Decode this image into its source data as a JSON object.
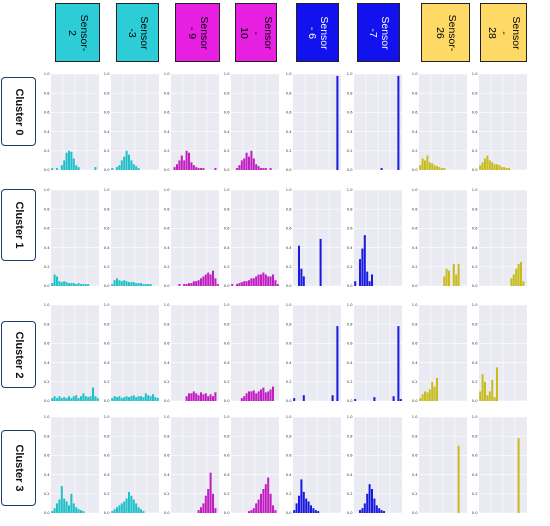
{
  "sensors": [
    {
      "label": "Sensor-2",
      "color": "#2ccdd6"
    },
    {
      "label": "Sensor -3",
      "color": "#2ccdd6"
    },
    {
      "label": "Sensor - 9",
      "color": "#e61fe0"
    },
    {
      "label": "Sensor -\n10",
      "color": "#e61fe0"
    },
    {
      "label": "Sensor - 6",
      "color": "#1212ee"
    },
    {
      "label": "Sensor -7",
      "color": "#1212ee"
    },
    {
      "label": "Sensor-26",
      "color": "#ffd966"
    },
    {
      "label": "Sensor -\n28",
      "color": "#ffd966"
    }
  ],
  "clusters": [
    "Cluster 0",
    "Cluster 1",
    "Cluster 2",
    "Cluster 3"
  ],
  "colors": {
    "cyan_bar": "#20c0c8",
    "magenta_bar": "#c01ec0",
    "blue_bar": "#1a1ae0",
    "yellow_bar": "#c8bc1c",
    "panel_bg": "#eaeaf2",
    "grid": "#ffffff"
  },
  "chart_data": {
    "type": "bar",
    "layout": "grid of histograms, rows = clusters, columns = sensors",
    "ylim": [
      0,
      1.0
    ],
    "yticks": [
      "0.0",
      "0.2",
      "0.4",
      "0.6",
      "0.8",
      "1.0"
    ],
    "grid": true,
    "panels": [
      [
        {
          "values": [
            0.02,
            0,
            0.02,
            0,
            0.05,
            0.1,
            0.18,
            0.2,
            0.19,
            0.12,
            0.05,
            0.03,
            0,
            0,
            0,
            0,
            0,
            0,
            0.03,
            0
          ]
        },
        {
          "values": [
            0.02,
            0,
            0.03,
            0.05,
            0.1,
            0.14,
            0.2,
            0.16,
            0.1,
            0.06,
            0.04,
            0.02,
            0,
            0,
            0,
            0,
            0,
            0,
            0,
            0
          ]
        },
        {
          "values": [
            0,
            0.03,
            0.06,
            0.1,
            0.15,
            0.1,
            0.2,
            0.18,
            0.08,
            0.05,
            0.03,
            0.02,
            0.02,
            0.02,
            0,
            0,
            0,
            0,
            0.02,
            0
          ]
        },
        {
          "values": [
            0,
            0,
            0.02,
            0.05,
            0.1,
            0.12,
            0.18,
            0.14,
            0.2,
            0.12,
            0.06,
            0.04,
            0.02,
            0.02,
            0.02,
            0,
            0.02,
            0,
            0,
            0
          ]
        },
        {
          "values": [
            0,
            0,
            0,
            0,
            0,
            0,
            0,
            0,
            0,
            0,
            0,
            0,
            0,
            0,
            0,
            0,
            0,
            0,
            0.98,
            0
          ]
        },
        {
          "values": [
            0,
            0,
            0,
            0,
            0,
            0,
            0,
            0,
            0,
            0,
            0,
            0.02,
            0,
            0,
            0,
            0,
            0,
            0,
            0.98,
            0
          ]
        },
        {
          "values": [
            0.05,
            0.12,
            0.1,
            0.15,
            0.08,
            0.07,
            0.05,
            0.04,
            0.03,
            0.02,
            0.02,
            0,
            0,
            0,
            0,
            0,
            0,
            0,
            0,
            0
          ]
        },
        {
          "values": [
            0.05,
            0.08,
            0.12,
            0.15,
            0.1,
            0.08,
            0.06,
            0.06,
            0.05,
            0.03,
            0.03,
            0.02,
            0.02,
            0,
            0,
            0,
            0,
            0,
            0,
            0
          ]
        }
      ],
      [
        {
          "values": [
            0.03,
            0.12,
            0.1,
            0.05,
            0.04,
            0.05,
            0.04,
            0.03,
            0.03,
            0.03,
            0.02,
            0.03,
            0.02,
            0.02,
            0.02,
            0.02,
            0,
            0,
            0,
            0
          ]
        },
        {
          "values": [
            0.02,
            0.06,
            0.08,
            0.06,
            0.05,
            0.06,
            0.05,
            0.04,
            0.04,
            0.04,
            0.03,
            0.03,
            0.03,
            0.02,
            0.02,
            0.02,
            0.02,
            0,
            0,
            0
          ]
        },
        {
          "values": [
            0,
            0,
            0,
            0.02,
            0,
            0.02,
            0.02,
            0.03,
            0.03,
            0.05,
            0.05,
            0.06,
            0.08,
            0.1,
            0.12,
            0.14,
            0.12,
            0.16,
            0.08,
            0.02
          ]
        },
        {
          "values": [
            0.02,
            0,
            0.02,
            0.03,
            0.04,
            0.05,
            0.05,
            0.06,
            0.08,
            0.08,
            0.1,
            0.12,
            0.12,
            0.14,
            0.12,
            0.1,
            0.1,
            0.12,
            0.06,
            0.02
          ]
        },
        {
          "values": [
            0,
            0,
            0.42,
            0.18,
            0.1,
            0,
            0,
            0,
            0,
            0,
            0,
            0.49,
            0,
            0,
            0,
            0,
            0,
            0,
            0,
            0
          ]
        },
        {
          "values": [
            0.05,
            0,
            0.28,
            0.39,
            0.53,
            0.15,
            0.05,
            0.12,
            0,
            0,
            0,
            0,
            0,
            0,
            0,
            0,
            0,
            0,
            0,
            0
          ]
        },
        {
          "values": [
            0,
            0,
            0,
            0,
            0,
            0,
            0,
            0,
            0,
            0,
            0.1,
            0.18,
            0.16,
            0,
            0.23,
            0.12,
            0.23,
            0,
            0,
            0
          ]
        },
        {
          "values": [
            0,
            0,
            0,
            0,
            0,
            0,
            0,
            0,
            0,
            0,
            0,
            0,
            0,
            0.08,
            0.12,
            0.18,
            0.23,
            0.25,
            0.05,
            0
          ]
        }
      ],
      [
        {
          "values": [
            0.03,
            0.05,
            0.03,
            0.05,
            0.03,
            0.04,
            0.03,
            0.05,
            0.03,
            0.05,
            0.06,
            0.03,
            0.05,
            0.08,
            0.05,
            0.04,
            0.05,
            0.14,
            0.05,
            0.03
          ]
        },
        {
          "values": [
            0.03,
            0.05,
            0.04,
            0.05,
            0.03,
            0.04,
            0.05,
            0.04,
            0.05,
            0.06,
            0.04,
            0.05,
            0.05,
            0.04,
            0.08,
            0.06,
            0.05,
            0.07,
            0.04,
            0.03
          ]
        },
        {
          "values": [
            0,
            0,
            0,
            0,
            0,
            0,
            0.05,
            0.08,
            0.08,
            0.1,
            0.08,
            0.06,
            0.09,
            0.07,
            0.08,
            0.05,
            0.07,
            0.05,
            0.09,
            0
          ]
        },
        {
          "values": [
            0,
            0,
            0,
            0,
            0.03,
            0.05,
            0.08,
            0.1,
            0.1,
            0.11,
            0.08,
            0.1,
            0.12,
            0.14,
            0.09,
            0.1,
            0.12,
            0.15,
            0,
            0
          ]
        },
        {
          "values": [
            0.03,
            0,
            0,
            0,
            0.06,
            0,
            0,
            0,
            0,
            0,
            0,
            0,
            0,
            0,
            0,
            0,
            0.06,
            0,
            0.78,
            0
          ]
        },
        {
          "values": [
            0.02,
            0,
            0,
            0,
            0,
            0,
            0,
            0,
            0.04,
            0,
            0,
            0,
            0,
            0,
            0,
            0,
            0.05,
            0,
            0.78,
            0.02
          ]
        },
        {
          "values": [
            0.03,
            0.07,
            0.1,
            0.09,
            0.12,
            0.2,
            0.15,
            0.24,
            0,
            0,
            0,
            0,
            0,
            0,
            0,
            0,
            0,
            0,
            0,
            0
          ]
        },
        {
          "values": [
            0.1,
            0.28,
            0.2,
            0.06,
            0.1,
            0.22,
            0.04,
            0.35,
            0,
            0,
            0,
            0,
            0,
            0,
            0,
            0,
            0,
            0,
            0,
            0
          ]
        }
      ],
      [
        {
          "values": [
            0.02,
            0.05,
            0.1,
            0.14,
            0.28,
            0.15,
            0.12,
            0.08,
            0.2,
            0.1,
            0.06,
            0.04,
            0.03,
            0.02,
            0,
            0,
            0,
            0,
            0,
            0
          ]
        },
        {
          "values": [
            0.02,
            0.04,
            0.06,
            0.08,
            0.1,
            0.12,
            0.15,
            0.22,
            0.18,
            0.14,
            0.1,
            0.06,
            0.04,
            0.02,
            0,
            0,
            0,
            0,
            0,
            0
          ]
        },
        {
          "values": [
            0,
            0,
            0,
            0,
            0,
            0,
            0,
            0,
            0,
            0,
            0,
            0.03,
            0.06,
            0.1,
            0.18,
            0.25,
            0.42,
            0.2,
            0.05,
            0
          ]
        },
        {
          "values": [
            0,
            0,
            0,
            0,
            0,
            0,
            0,
            0.02,
            0.03,
            0.05,
            0.1,
            0.14,
            0.2,
            0.25,
            0.3,
            0.37,
            0.2,
            0.08,
            0.03,
            0
          ]
        },
        {
          "values": [
            0.03,
            0.1,
            0.18,
            0.35,
            0.22,
            0.15,
            0.12,
            0.08,
            0.05,
            0.03,
            0.02,
            0,
            0,
            0,
            0,
            0,
            0,
            0,
            0,
            0
          ]
        },
        {
          "values": [
            0,
            0,
            0.03,
            0.05,
            0.1,
            0.2,
            0.3,
            0.25,
            0.15,
            0.08,
            0.05,
            0.03,
            0.02,
            0,
            0,
            0,
            0,
            0,
            0,
            0
          ]
        },
        {
          "values": [
            0,
            0,
            0,
            0,
            0,
            0,
            0,
            0,
            0,
            0,
            0,
            0,
            0,
            0,
            0,
            0,
            0.7,
            0,
            0,
            0
          ]
        },
        {
          "values": [
            0,
            0,
            0,
            0,
            0,
            0,
            0,
            0,
            0,
            0,
            0,
            0,
            0,
            0,
            0,
            0,
            0.78,
            0,
            0,
            0
          ]
        }
      ]
    ]
  }
}
